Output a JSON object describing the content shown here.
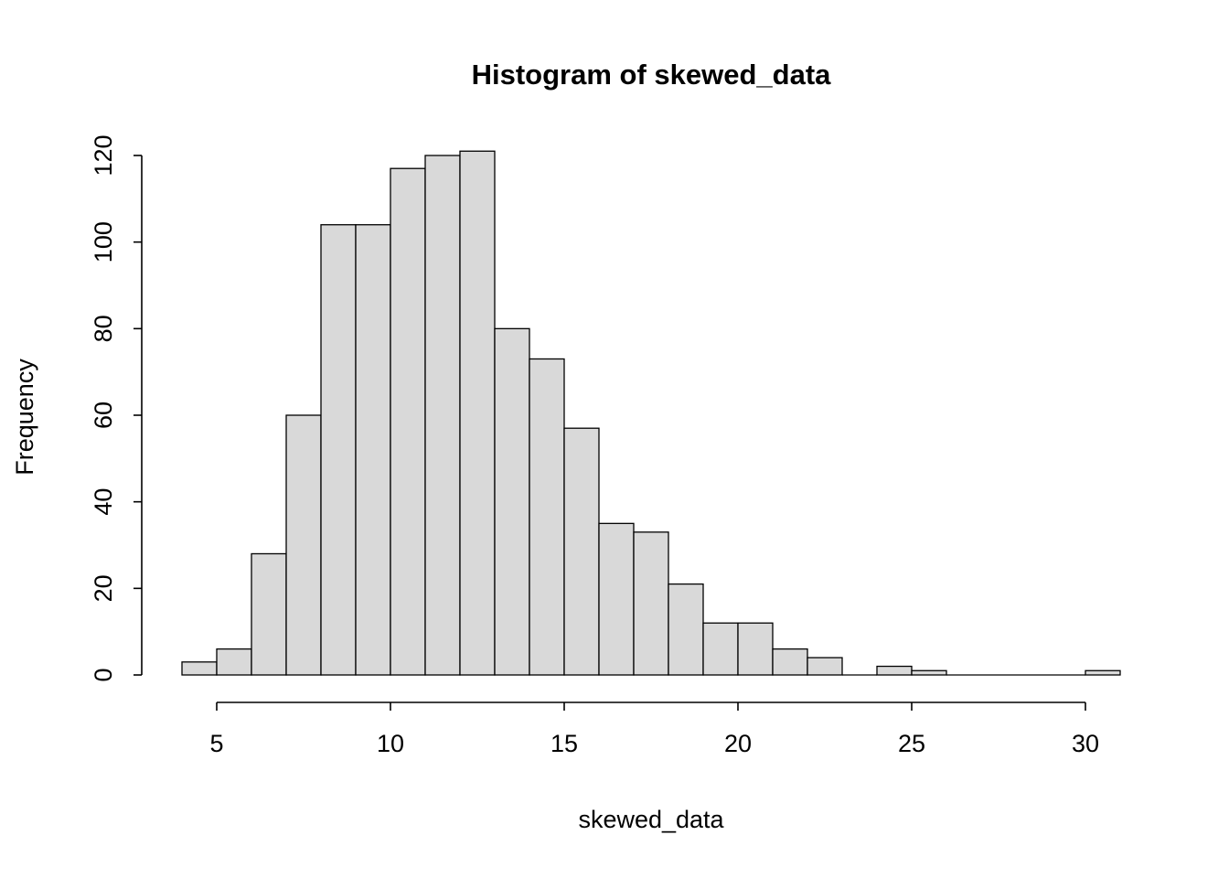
{
  "chart_data": {
    "type": "bar",
    "subtype": "histogram",
    "title": "Histogram of skewed_data",
    "xlabel": "skewed_data",
    "ylabel": "Frequency",
    "bin_width": 1,
    "bin_edges": [
      4,
      5,
      6,
      7,
      8,
      9,
      10,
      11,
      12,
      13,
      14,
      15,
      16,
      17,
      18,
      19,
      20,
      21,
      22,
      23,
      24,
      25,
      26,
      27,
      28,
      29,
      30,
      31
    ],
    "counts": [
      3,
      6,
      28,
      60,
      104,
      104,
      117,
      120,
      121,
      80,
      73,
      57,
      35,
      33,
      21,
      12,
      12,
      6,
      4,
      0,
      2,
      1,
      0,
      0,
      0,
      0,
      1
    ],
    "x_ticks": [
      5,
      10,
      15,
      20,
      25,
      30
    ],
    "y_ticks": [
      0,
      20,
      40,
      60,
      80,
      100,
      120
    ],
    "xlim": [
      4,
      31
    ],
    "ylim": [
      0,
      120
    ],
    "grid": false,
    "legend": false,
    "bar_fill": "#d9d9d9",
    "bar_stroke": "#000000",
    "axis_color": "#000000",
    "background": "#ffffff"
  }
}
